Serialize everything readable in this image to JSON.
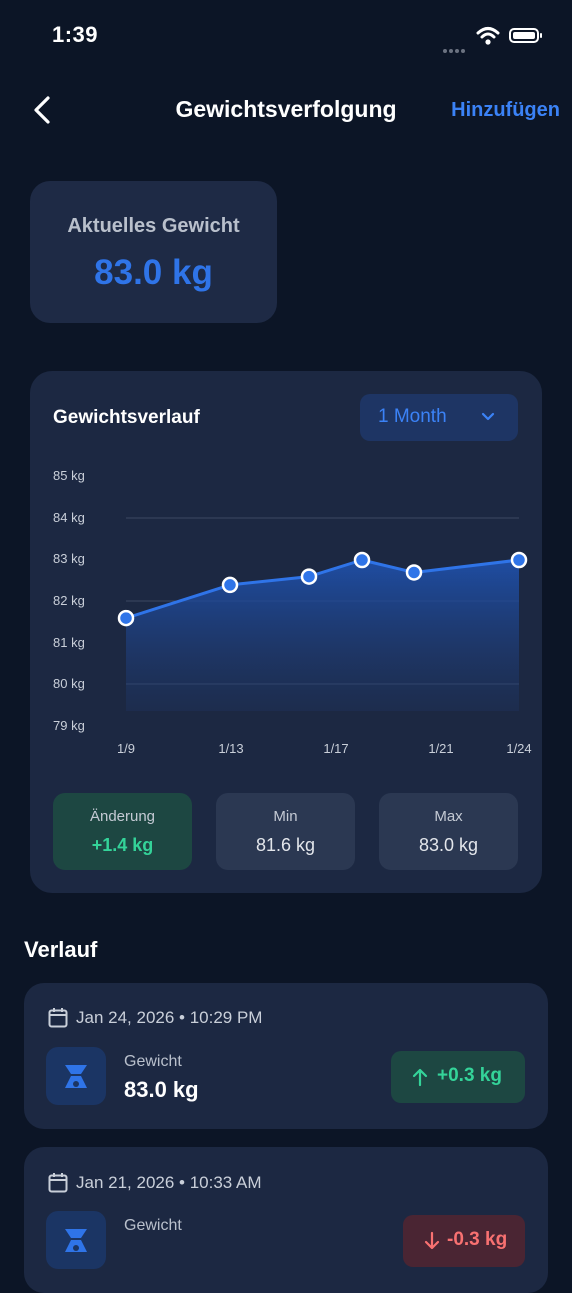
{
  "status": {
    "time": "1:39"
  },
  "nav": {
    "title": "Gewichtsverfolgung",
    "add_label": "Hinzufügen"
  },
  "current": {
    "label": "Aktuelles Gewicht",
    "value": "83.0 kg"
  },
  "chart_card": {
    "title": "Gewichtsverlauf",
    "range_label": "1 Month"
  },
  "chart_data": {
    "type": "line",
    "x": [
      "1/9",
      "1/12",
      "1/15",
      "1/18",
      "1/21",
      "1/24"
    ],
    "xticks": [
      "1/9",
      "1/13",
      "1/17",
      "1/21",
      "1/24"
    ],
    "series": [
      {
        "values": [
          81.6,
          82.4,
          82.6,
          83.0,
          82.7,
          83.0
        ]
      }
    ],
    "yticks": [
      "85 kg",
      "84 kg",
      "83 kg",
      "82 kg",
      "81 kg",
      "80 kg",
      "79 kg"
    ],
    "ylim": [
      79,
      85
    ],
    "accent": "#2f74e8"
  },
  "stats": [
    {
      "label": "Änderung",
      "value": "+1.4 kg"
    },
    {
      "label": "Min",
      "value": "81.6 kg"
    },
    {
      "label": "Max",
      "value": "83.0 kg"
    }
  ],
  "history": {
    "title": "Verlauf",
    "entries": [
      {
        "date": "Jan 24, 2026 • 10:29 PM",
        "label": "Gewicht",
        "value": "83.0 kg",
        "change": "+0.3 kg",
        "direction": "up"
      },
      {
        "date": "Jan 21, 2026 • 10:33 AM",
        "label": "Gewicht",
        "value": "",
        "change": "-0.3 kg",
        "direction": "down"
      }
    ]
  }
}
